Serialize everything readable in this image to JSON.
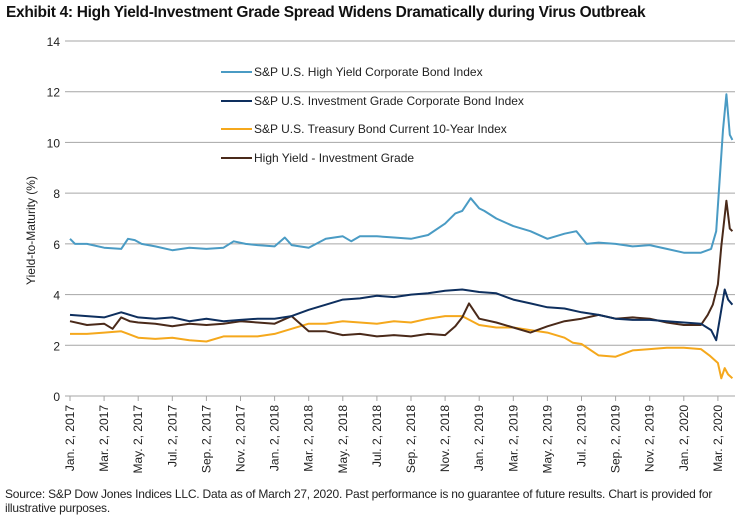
{
  "title": "Exhibit 4: High Yield-Investment Grade Spread Widens Dramatically during Virus Outbreak",
  "footer": "Source: S&P Dow Jones Indices LLC. Data as of March 27, 2020. Past performance is no guarantee of future results. Chart is provided for illustrative purposes.",
  "chart_data": {
    "type": "line",
    "title": "Exhibit 4: High Yield-Investment Grade Spread Widens Dramatically during Virus Outbreak",
    "xlabel": "",
    "ylabel": "Yield-to-Maturity (%)",
    "ylim": [
      0,
      14
    ],
    "yticks": [
      0,
      2,
      4,
      6,
      8,
      10,
      12,
      14
    ],
    "grid": "horizontal",
    "legend_position": "top-center",
    "x_unit": "months since Jan. 2, 2017",
    "xlim": [
      0,
      38.85
    ],
    "xtick_positions": [
      0,
      2,
      4,
      6,
      8,
      10,
      12,
      14,
      16,
      18,
      20,
      22,
      24,
      26,
      28,
      30,
      32,
      34,
      36,
      38
    ],
    "xtick_labels": [
      "Jan. 2, 2017",
      "Mar. 2, 2017",
      "May. 2, 2017",
      "Jul. 2, 2017",
      "Sep. 2, 2017",
      "Nov. 2, 2017",
      "Jan. 2, 2018",
      "Mar. 2, 2018",
      "May. 2, 2018",
      "Jul. 2, 2018",
      "Sep. 2, 2018",
      "Nov. 2, 2018",
      "Jan. 2, 2019",
      "Mar. 2, 2019",
      "May. 2, 2019",
      "Jul. 2, 2019",
      "Sep. 2, 2019",
      "Nov. 2, 2019",
      "Jan. 2, 2020",
      "Mar. 2, 2020"
    ],
    "series": [
      {
        "name": "S&P U.S. High Yield Corporate Bond Index",
        "color": "#4a9bc4",
        "x": [
          0,
          0.3,
          1,
          2,
          3,
          3.4,
          3.8,
          4.2,
          5,
          6,
          7,
          8,
          9,
          9.6,
          10.3,
          11,
          12,
          12.6,
          13,
          14,
          15,
          16,
          16.5,
          17,
          18,
          19,
          20,
          21,
          22,
          22.6,
          23,
          23.5,
          24,
          24.3,
          25,
          26,
          27,
          28,
          29,
          29.7,
          30.3,
          31,
          32,
          33,
          34,
          35,
          36,
          37,
          37.6,
          37.9,
          38.1,
          38.3,
          38.5,
          38.7,
          38.85
        ],
        "values": [
          6.2,
          6.0,
          6.0,
          5.85,
          5.8,
          6.2,
          6.15,
          6.0,
          5.9,
          5.75,
          5.85,
          5.8,
          5.85,
          6.1,
          6.0,
          5.95,
          5.9,
          6.25,
          5.95,
          5.85,
          6.2,
          6.3,
          6.1,
          6.3,
          6.3,
          6.25,
          6.2,
          6.35,
          6.8,
          7.2,
          7.3,
          7.8,
          7.4,
          7.3,
          7.0,
          6.7,
          6.5,
          6.2,
          6.4,
          6.5,
          6.0,
          6.05,
          6.0,
          5.9,
          5.95,
          5.8,
          5.65,
          5.65,
          5.8,
          6.5,
          8.5,
          10.5,
          11.9,
          10.3,
          10.1
        ]
      },
      {
        "name": "S&P U.S. Investment Grade Corporate Bond Index",
        "color": "#0e2f5e",
        "x": [
          0,
          1,
          2,
          3,
          4,
          5,
          6,
          7,
          8,
          9,
          10,
          11,
          12,
          13,
          14,
          15,
          16,
          17,
          18,
          19,
          20,
          21,
          22,
          23,
          24,
          25,
          26,
          27,
          28,
          29,
          30,
          31,
          32,
          33,
          34,
          35,
          36,
          37,
          37.6,
          37.9,
          38.2,
          38.4,
          38.6,
          38.85
        ],
        "values": [
          3.2,
          3.15,
          3.1,
          3.3,
          3.1,
          3.05,
          3.1,
          2.95,
          3.05,
          2.95,
          3.0,
          3.05,
          3.05,
          3.15,
          3.4,
          3.6,
          3.8,
          3.85,
          3.95,
          3.9,
          4.0,
          4.05,
          4.15,
          4.2,
          4.1,
          4.05,
          3.8,
          3.65,
          3.5,
          3.45,
          3.3,
          3.2,
          3.05,
          3.0,
          3.0,
          2.95,
          2.9,
          2.85,
          2.6,
          2.2,
          3.4,
          4.2,
          3.8,
          3.6
        ]
      },
      {
        "name": "S&P U.S. Treasury Bond Current 10-Year Index",
        "color": "#f5a81c",
        "x": [
          0,
          1,
          2,
          3,
          4,
          5,
          6,
          7,
          8,
          9,
          10,
          11,
          12,
          13,
          14,
          15,
          16,
          17,
          18,
          19,
          20,
          21,
          22,
          23,
          24,
          25,
          26,
          27,
          28,
          29,
          29.5,
          30,
          31,
          32,
          33,
          34,
          35,
          36,
          37,
          37.5,
          38,
          38.2,
          38.4,
          38.6,
          38.85
        ],
        "values": [
          2.45,
          2.45,
          2.5,
          2.55,
          2.3,
          2.25,
          2.3,
          2.2,
          2.15,
          2.35,
          2.35,
          2.35,
          2.45,
          2.65,
          2.85,
          2.85,
          2.95,
          2.9,
          2.85,
          2.95,
          2.9,
          3.05,
          3.15,
          3.15,
          2.8,
          2.7,
          2.7,
          2.6,
          2.5,
          2.3,
          2.1,
          2.05,
          1.6,
          1.55,
          1.8,
          1.85,
          1.9,
          1.9,
          1.85,
          1.6,
          1.3,
          0.7,
          1.1,
          0.85,
          0.7
        ]
      },
      {
        "name": "High Yield - Investment Grade",
        "color": "#4a2a1a",
        "x": [
          0,
          1,
          2,
          2.5,
          3,
          3.5,
          4,
          5,
          6,
          7,
          8,
          9,
          10,
          11,
          12,
          13,
          14,
          15,
          16,
          17,
          18,
          19,
          20,
          21,
          22,
          22.6,
          23,
          23.4,
          24,
          25,
          26,
          27,
          28,
          29,
          30,
          31,
          32,
          33,
          34,
          35,
          36,
          37,
          37.4,
          37.7,
          38,
          38.2,
          38.5,
          38.7,
          38.85
        ],
        "values": [
          2.95,
          2.8,
          2.85,
          2.65,
          3.1,
          2.95,
          2.9,
          2.85,
          2.75,
          2.85,
          2.8,
          2.85,
          2.95,
          2.9,
          2.85,
          3.15,
          2.55,
          2.55,
          2.4,
          2.45,
          2.35,
          2.4,
          2.35,
          2.45,
          2.4,
          2.75,
          3.1,
          3.65,
          3.05,
          2.9,
          2.7,
          2.5,
          2.75,
          2.95,
          3.05,
          3.2,
          3.05,
          3.1,
          3.05,
          2.9,
          2.8,
          2.8,
          3.2,
          3.6,
          4.4,
          5.9,
          7.7,
          6.6,
          6.5
        ]
      }
    ]
  }
}
